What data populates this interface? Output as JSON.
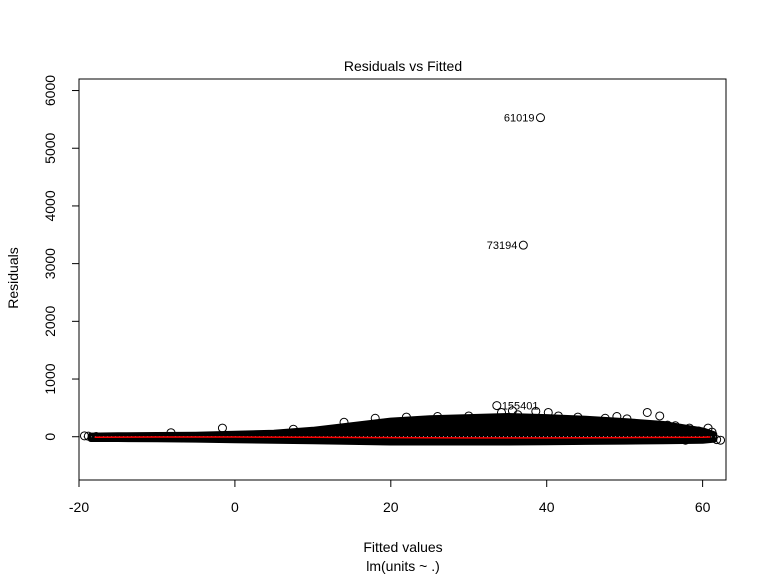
{
  "chart_data": {
    "type": "scatter",
    "title": "Residuals vs Fitted",
    "xlabel": "Fitted values",
    "subtitle": "lm(units ~ .)",
    "ylabel": "Residuals",
    "xlim": [
      -20,
      63
    ],
    "ylim": [
      -750,
      6200
    ],
    "x_ticks": [
      -20,
      0,
      20,
      40,
      60
    ],
    "x_tick_labels": [
      "-20",
      "0",
      "20",
      "40",
      "60"
    ],
    "y_ticks": [
      0,
      1000,
      2000,
      3000,
      4000,
      5000,
      6000
    ],
    "y_tick_labels": [
      "0",
      "1000",
      "2000",
      "3000",
      "4000",
      "5000",
      "6000"
    ],
    "grid": false,
    "reference_line": {
      "y": 0,
      "style": "dotted",
      "color": "#bbbbbb"
    },
    "smoother": {
      "color": "#ff0000",
      "x": [
        -18,
        -10,
        0,
        10,
        20,
        30,
        40,
        50,
        60,
        61
      ],
      "y": [
        -10,
        -5,
        -5,
        -10,
        -15,
        -20,
        -20,
        -15,
        -10,
        -5
      ]
    },
    "residual_band": {
      "color": "#000000",
      "x": [
        -18.5,
        -15,
        -10,
        -5,
        0,
        5,
        10,
        15,
        20,
        25,
        30,
        35,
        40,
        45,
        50,
        55,
        60,
        61.5
      ],
      "upper": [
        20,
        25,
        30,
        35,
        50,
        70,
        120,
        200,
        280,
        320,
        340,
        360,
        340,
        310,
        270,
        220,
        110,
        40
      ],
      "lower": [
        -40,
        -40,
        -45,
        -50,
        -60,
        -70,
        -80,
        -90,
        -100,
        -100,
        -100,
        -100,
        -95,
        -90,
        -85,
        -80,
        -70,
        -50
      ]
    },
    "points": [
      {
        "x": 39.2,
        "y": 5530,
        "label": "61019"
      },
      {
        "x": 37.0,
        "y": 3320,
        "label": "73194"
      },
      {
        "x": 33.6,
        "y": 540,
        "label": "155401"
      },
      {
        "x": -19.3,
        "y": 15
      },
      {
        "x": -18.8,
        "y": 10
      },
      {
        "x": -17.8,
        "y": 5
      },
      {
        "x": -8.2,
        "y": 70
      },
      {
        "x": -1.6,
        "y": 150
      },
      {
        "x": 7.5,
        "y": 130
      },
      {
        "x": 14.0,
        "y": 250
      },
      {
        "x": 18.0,
        "y": 320
      },
      {
        "x": 22.0,
        "y": 340
      },
      {
        "x": 26.0,
        "y": 350
      },
      {
        "x": 30.0,
        "y": 360
      },
      {
        "x": 34.2,
        "y": 420
      },
      {
        "x": 35.6,
        "y": 450
      },
      {
        "x": 36.3,
        "y": 380
      },
      {
        "x": 38.6,
        "y": 440
      },
      {
        "x": 40.2,
        "y": 420
      },
      {
        "x": 41.5,
        "y": 360
      },
      {
        "x": 44.0,
        "y": 340
      },
      {
        "x": 47.5,
        "y": 320
      },
      {
        "x": 49.0,
        "y": 350
      },
      {
        "x": 50.3,
        "y": 310
      },
      {
        "x": 52.9,
        "y": 420
      },
      {
        "x": 54.5,
        "y": 360
      },
      {
        "x": 55.5,
        "y": 200
      },
      {
        "x": 56.5,
        "y": 190
      },
      {
        "x": 58.3,
        "y": 150
      },
      {
        "x": 59.5,
        "y": 100
      },
      {
        "x": 60.7,
        "y": 150
      },
      {
        "x": 61.2,
        "y": 80
      },
      {
        "x": 61.8,
        "y": -50
      },
      {
        "x": 62.3,
        "y": -60
      },
      {
        "x": 57.8,
        "y": -60
      }
    ]
  }
}
